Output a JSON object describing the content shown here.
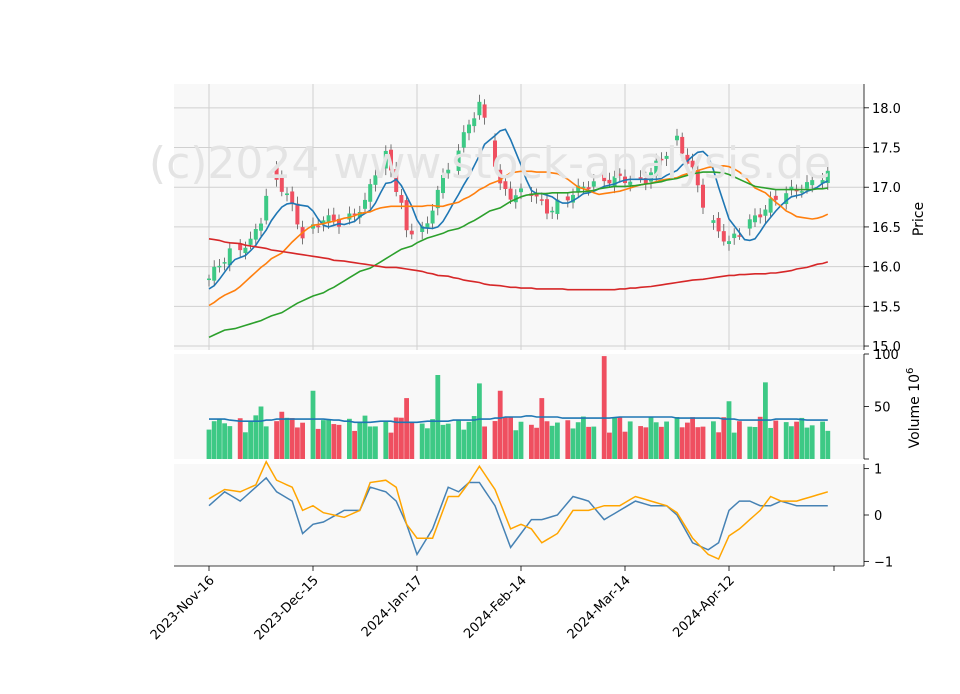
{
  "watermark": "(c)2024 www.stock-analysis.de",
  "chart_data": {
    "type": "candlestick",
    "x_ticks": [
      "2023-Nov-16",
      "2023-Dec-15",
      "2024-Jan-17",
      "2024-Feb-14",
      "2024-Mar-14",
      "2024-Apr-12"
    ],
    "x_tick_index": [
      0,
      20,
      40,
      60,
      80,
      100
    ],
    "n_bars": 120,
    "price": {
      "ylabel": "Price",
      "ylim": [
        14.95,
        18.3
      ],
      "yticks": [
        "15.0",
        "15.5",
        "16.0",
        "16.5",
        "17.0",
        "17.5",
        "18.0"
      ],
      "close_anchors": [
        [
          0,
          15.85
        ],
        [
          4,
          16.2
        ],
        [
          8,
          16.3
        ],
        [
          10,
          16.6
        ],
        [
          12,
          17.2
        ],
        [
          15,
          16.9
        ],
        [
          18,
          16.4
        ],
        [
          22,
          16.6
        ],
        [
          26,
          16.55
        ],
        [
          30,
          16.8
        ],
        [
          32,
          17.2
        ],
        [
          34,
          17.4
        ],
        [
          37,
          16.8
        ],
        [
          38,
          16.4
        ],
        [
          42,
          16.5
        ],
        [
          44,
          17.0
        ],
        [
          47,
          17.3
        ],
        [
          50,
          17.8
        ],
        [
          52,
          18.05
        ],
        [
          54,
          17.6
        ],
        [
          56,
          17.0
        ],
        [
          58,
          16.9
        ],
        [
          62,
          16.95
        ],
        [
          65,
          16.7
        ],
        [
          68,
          16.85
        ],
        [
          72,
          17.0
        ],
        [
          75,
          17.1
        ],
        [
          80,
          17.1
        ],
        [
          84,
          17.1
        ],
        [
          88,
          17.45
        ],
        [
          90,
          17.6
        ],
        [
          93,
          17.2
        ],
        [
          96,
          16.6
        ],
        [
          100,
          16.3
        ],
        [
          104,
          16.55
        ],
        [
          108,
          16.8
        ],
        [
          112,
          16.95
        ],
        [
          116,
          17.05
        ],
        [
          119,
          17.15
        ]
      ]
    },
    "moving_averages": [
      {
        "window": 5,
        "color": "#1f77b4",
        "values": [
          15.72,
          15.76,
          15.84,
          15.93,
          16.02,
          16.09,
          16.14,
          16.2,
          16.27,
          16.37,
          16.46,
          16.58,
          16.67,
          16.75,
          16.79,
          16.8,
          16.78,
          16.76,
          16.7,
          16.6,
          16.52,
          16.5,
          16.52,
          16.54,
          16.53,
          16.55,
          16.57,
          16.63,
          16.71,
          16.8,
          16.93,
          17.05,
          17.06,
          17.1,
          17.02,
          16.89,
          16.76,
          16.59,
          16.49,
          16.48,
          16.5,
          16.57,
          16.68,
          16.8,
          16.91,
          17.03,
          17.14,
          17.27,
          17.4,
          17.54,
          17.65,
          17.71,
          17.73,
          17.6,
          17.44,
          17.28,
          17.1,
          16.96,
          16.92,
          16.92,
          16.88,
          16.83,
          16.8,
          16.8,
          16.83,
          16.87,
          16.92,
          16.93,
          16.95,
          16.98,
          17.01,
          17.04,
          17.07,
          17.09,
          17.1,
          17.1,
          17.1,
          17.1,
          17.1,
          17.1,
          17.11,
          17.15,
          17.21,
          17.28,
          17.33,
          17.39,
          17.44,
          17.45,
          17.39,
          17.22,
          17.0,
          16.8,
          16.6,
          16.43,
          16.34,
          16.33,
          16.35,
          16.44,
          16.54,
          16.62,
          16.7,
          16.77,
          16.83,
          16.88,
          16.91,
          16.95,
          16.97,
          17.0,
          17.05,
          17.08
        ]
      },
      {
        "window": 20,
        "color": "#ff7f0e",
        "values": [
          15.51,
          15.55,
          15.6,
          15.64,
          15.7,
          15.75,
          15.81,
          15.87,
          15.93,
          15.99,
          16.04,
          16.1,
          16.17,
          16.24,
          16.31,
          16.37,
          16.43,
          16.48,
          16.52,
          16.54,
          16.56,
          16.57,
          16.59,
          16.61,
          16.62,
          16.64,
          16.67,
          16.69,
          16.72,
          16.74,
          16.75,
          16.76,
          16.76,
          16.76,
          16.76,
          16.76,
          16.76,
          16.77,
          16.77,
          16.76,
          16.76,
          16.78,
          16.81,
          16.85,
          16.88,
          16.92,
          16.97,
          17.0,
          17.04,
          17.09,
          17.14,
          17.18,
          17.19,
          17.2,
          17.2,
          17.2,
          17.19,
          17.19,
          17.18,
          17.17,
          17.14,
          17.1,
          17.05,
          17.0,
          16.96,
          16.93,
          16.91,
          16.92,
          16.93,
          16.94,
          16.95,
          16.97,
          17.01,
          17.03,
          17.04,
          17.05,
          17.07,
          17.09,
          17.1,
          17.12,
          17.15,
          17.17,
          17.19,
          17.21,
          17.23,
          17.25,
          17.26,
          17.27,
          17.26,
          17.23,
          17.19,
          17.14,
          17.06,
          16.99,
          16.93,
          16.87,
          16.81,
          16.76,
          16.7,
          16.67,
          16.63,
          16.62,
          16.6,
          16.61,
          16.63,
          16.66
        ]
      },
      {
        "window": 50,
        "color": "#2ca02c",
        "values": [
          15.11,
          15.14,
          15.17,
          15.2,
          15.22,
          15.24,
          15.26,
          15.28,
          15.3,
          15.32,
          15.35,
          15.38,
          15.42,
          15.46,
          15.5,
          15.54,
          15.57,
          15.6,
          15.63,
          15.67,
          15.71,
          15.74,
          15.78,
          15.82,
          15.86,
          15.9,
          15.94,
          15.98,
          16.02,
          16.06,
          16.1,
          16.14,
          16.18,
          16.22,
          16.26,
          16.3,
          16.33,
          16.36,
          16.38,
          16.4,
          16.42,
          16.45,
          16.48,
          16.51,
          16.55,
          16.58,
          16.62,
          16.66,
          16.7,
          16.74,
          16.78,
          16.82,
          16.85,
          16.88,
          16.9,
          16.91,
          16.92,
          16.92,
          16.93,
          16.93,
          16.93,
          16.93,
          16.94,
          16.94,
          16.95,
          16.96,
          16.98,
          16.99,
          17.0,
          17.01,
          17.01,
          17.01,
          17.02,
          17.03,
          17.04,
          17.05,
          17.06,
          17.07,
          17.09,
          17.11,
          17.13,
          17.15,
          17.17,
          17.18,
          17.19,
          17.19,
          17.19,
          17.18,
          17.16,
          17.13,
          17.1,
          17.07,
          17.04,
          17.01,
          16.99,
          16.98,
          16.97,
          16.97,
          16.97,
          16.97,
          16.97,
          16.97,
          16.97,
          16.98,
          16.98,
          16.99
        ]
      },
      {
        "window": 200,
        "color": "#d62728",
        "values": [
          16.35,
          16.34,
          16.33,
          16.31,
          16.3,
          16.29,
          16.27,
          16.26,
          16.25,
          16.24,
          16.23,
          16.21,
          16.2,
          16.19,
          16.17,
          16.16,
          16.15,
          16.14,
          16.13,
          16.12,
          16.11,
          16.1,
          16.08,
          16.07,
          16.06,
          16.05,
          16.04,
          16.03,
          16.02,
          16.01,
          16.0,
          15.99,
          15.99,
          15.98,
          15.97,
          15.96,
          15.95,
          15.94,
          15.92,
          15.91,
          15.89,
          15.88,
          15.86,
          15.85,
          15.83,
          15.82,
          15.81,
          15.8,
          15.78,
          15.77,
          15.76,
          15.75,
          15.74,
          15.74,
          15.73,
          15.73,
          15.73,
          15.72,
          15.72,
          15.72,
          15.72,
          15.72,
          15.71,
          15.71,
          15.71,
          15.71,
          15.71,
          15.71,
          15.71,
          15.71,
          15.71,
          15.72,
          15.72,
          15.73,
          15.73,
          15.74,
          15.75,
          15.76,
          15.77,
          15.78,
          15.79,
          15.8,
          15.81,
          15.82,
          15.83,
          15.84,
          15.85,
          15.86,
          15.87,
          15.88,
          15.89,
          15.89,
          15.9,
          15.9,
          15.91,
          15.91,
          15.91,
          15.92,
          15.92,
          15.93,
          15.94,
          15.95,
          15.97,
          15.99,
          16.01,
          16.03,
          16.04,
          16.06
        ]
      }
    ],
    "volume": {
      "ylabel": "Volume  10",
      "ylabel_exp": "6",
      "ylim": [
        0,
        100
      ],
      "yticks": [
        0,
        50,
        100
      ],
      "ma_color": "#1f77b4",
      "ma_values": [
        38,
        38,
        38,
        38,
        37,
        36,
        36,
        36,
        36,
        36,
        37,
        37,
        38,
        38,
        38,
        38,
        38,
        38,
        38,
        38,
        38,
        37,
        37,
        36,
        36,
        35,
        35,
        35,
        35,
        36,
        36,
        36,
        35,
        35,
        35,
        35,
        35,
        36,
        36,
        36,
        36,
        36,
        37,
        37,
        37,
        37,
        38,
        38,
        38,
        39,
        39,
        40,
        40,
        40,
        41,
        41,
        40,
        40,
        40,
        40,
        40,
        39,
        39,
        39,
        39,
        39,
        39,
        39,
        39,
        39,
        40,
        40,
        40,
        40,
        40,
        40,
        40,
        40,
        40,
        40,
        39,
        39,
        39,
        39,
        39,
        39,
        39,
        39,
        38,
        38,
        38,
        37,
        37,
        37,
        37,
        37,
        37,
        38,
        38,
        38,
        38,
        38,
        37,
        37,
        37,
        37,
        37
      ],
      "spikes": [
        [
          10,
          50
        ],
        [
          12,
          73
        ],
        [
          14,
          45
        ],
        [
          20,
          65
        ],
        [
          38,
          58
        ],
        [
          44,
          80
        ],
        [
          47,
          70
        ],
        [
          52,
          72
        ],
        [
          56,
          65
        ],
        [
          64,
          58
        ],
        [
          76,
          98
        ],
        [
          90,
          40
        ],
        [
          100,
          55
        ],
        [
          107,
          73
        ]
      ]
    },
    "oscillator": {
      "ylim": [
        -1.1,
        1.1
      ],
      "yticks": [
        "1",
        "0",
        "−1"
      ],
      "series": [
        {
          "color": "#4682b4",
          "anchors": [
            [
              0,
              0.2
            ],
            [
              3,
              0.5
            ],
            [
              6,
              0.3
            ],
            [
              9,
              0.6
            ],
            [
              11,
              0.8
            ],
            [
              13,
              0.5
            ],
            [
              16,
              0.3
            ],
            [
              18,
              -0.4
            ],
            [
              20,
              -0.2
            ],
            [
              22,
              -0.15
            ],
            [
              26,
              0.1
            ],
            [
              29,
              0.1
            ],
            [
              31,
              0.6
            ],
            [
              34,
              0.5
            ],
            [
              36,
              0.3
            ],
            [
              38,
              -0.2
            ],
            [
              40,
              -0.85
            ],
            [
              43,
              -0.3
            ],
            [
              46,
              0.6
            ],
            [
              48,
              0.5
            ],
            [
              50,
              0.7
            ],
            [
              52,
              0.7
            ],
            [
              55,
              0.2
            ],
            [
              58,
              -0.7
            ],
            [
              60,
              -0.4
            ],
            [
              62,
              -0.1
            ],
            [
              64,
              -0.1
            ],
            [
              67,
              0.0
            ],
            [
              70,
              0.4
            ],
            [
              73,
              0.3
            ],
            [
              76,
              -0.1
            ],
            [
              79,
              0.1
            ],
            [
              82,
              0.3
            ],
            [
              85,
              0.2
            ],
            [
              88,
              0.2
            ],
            [
              90,
              0.0
            ],
            [
              93,
              -0.6
            ],
            [
              96,
              -0.75
            ],
            [
              98,
              -0.6
            ],
            [
              100,
              0.1
            ],
            [
              102,
              0.3
            ],
            [
              104,
              0.3
            ],
            [
              106,
              0.2
            ],
            [
              108,
              0.2
            ],
            [
              110,
              0.3
            ],
            [
              113,
              0.2
            ],
            [
              116,
              0.2
            ],
            [
              119,
              0.2
            ]
          ]
        },
        {
          "color": "#ffa500",
          "anchors": [
            [
              0,
              0.35
            ],
            [
              3,
              0.55
            ],
            [
              6,
              0.5
            ],
            [
              9,
              0.65
            ],
            [
              11,
              1.15
            ],
            [
              13,
              0.75
            ],
            [
              16,
              0.6
            ],
            [
              18,
              0.1
            ],
            [
              20,
              0.2
            ],
            [
              22,
              0.05
            ],
            [
              26,
              -0.05
            ],
            [
              29,
              0.1
            ],
            [
              31,
              0.7
            ],
            [
              34,
              0.75
            ],
            [
              36,
              0.6
            ],
            [
              38,
              -0.2
            ],
            [
              40,
              -0.5
            ],
            [
              43,
              -0.5
            ],
            [
              46,
              0.4
            ],
            [
              48,
              0.4
            ],
            [
              50,
              0.7
            ],
            [
              52,
              1.05
            ],
            [
              55,
              0.55
            ],
            [
              58,
              -0.3
            ],
            [
              60,
              -0.2
            ],
            [
              62,
              -0.3
            ],
            [
              64,
              -0.6
            ],
            [
              67,
              -0.4
            ],
            [
              70,
              0.1
            ],
            [
              73,
              0.1
            ],
            [
              76,
              0.2
            ],
            [
              79,
              0.2
            ],
            [
              82,
              0.4
            ],
            [
              85,
              0.3
            ],
            [
              88,
              0.2
            ],
            [
              90,
              0.05
            ],
            [
              93,
              -0.5
            ],
            [
              96,
              -0.85
            ],
            [
              98,
              -0.95
            ],
            [
              100,
              -0.45
            ],
            [
              102,
              -0.3
            ],
            [
              104,
              -0.1
            ],
            [
              106,
              0.1
            ],
            [
              108,
              0.4
            ],
            [
              110,
              0.3
            ],
            [
              113,
              0.3
            ],
            [
              116,
              0.4
            ],
            [
              119,
              0.5
            ]
          ]
        }
      ]
    },
    "colors": {
      "up": "#3dc985",
      "down": "#ef4f60",
      "panel_bg": "#f8f8f8",
      "grid": "#d0d0d0"
    }
  }
}
